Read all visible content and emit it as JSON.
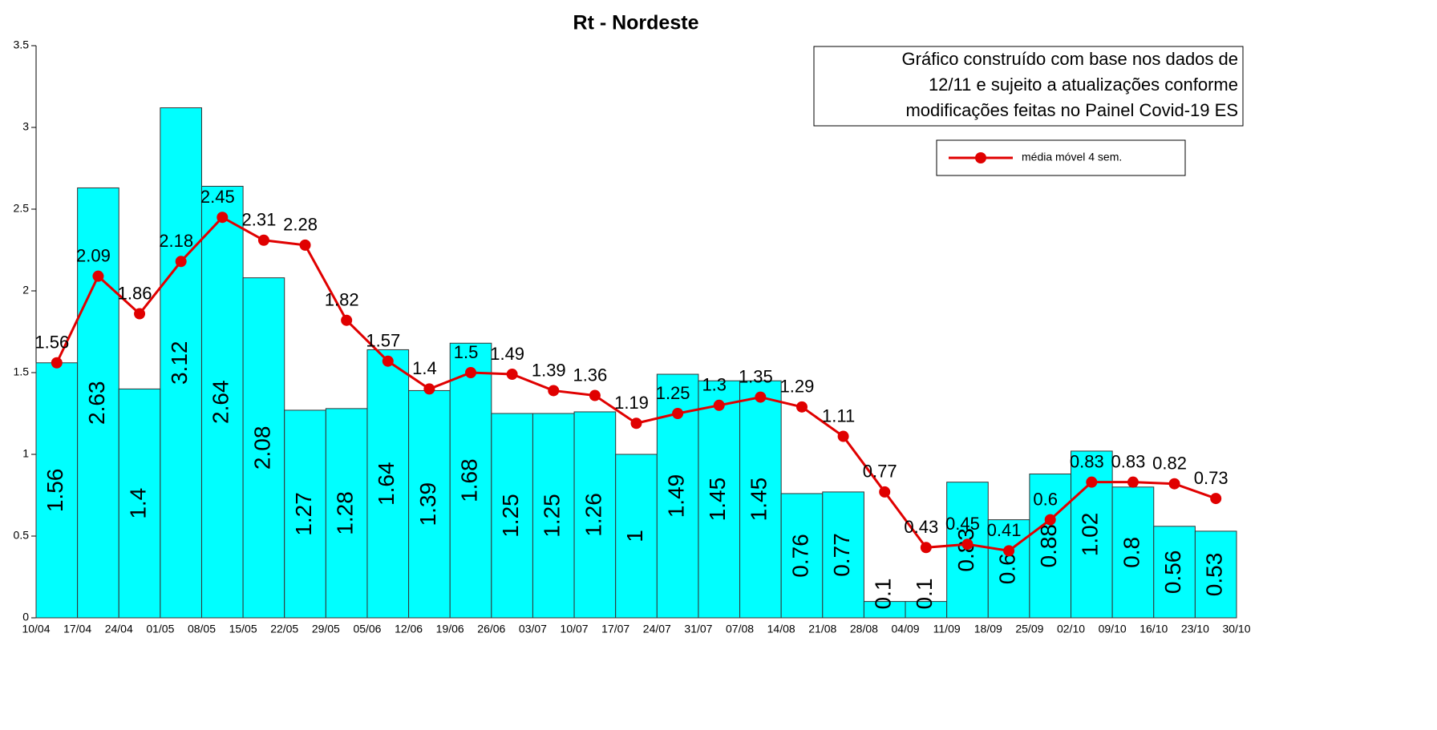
{
  "chart_data": {
    "type": "bar_line",
    "title": "Rt - Nordeste",
    "annotation": [
      "Gráfico construído com base nos dados de",
      "12/11 e sujeito a atualizações conforme",
      "modificações feitas no Painel Covid-19 ES"
    ],
    "x_edges": [
      "10/04",
      "17/04",
      "24/04",
      "01/05",
      "08/05",
      "15/05",
      "22/05",
      "29/05",
      "05/06",
      "12/06",
      "19/06",
      "26/06",
      "03/07",
      "10/07",
      "17/07",
      "24/07",
      "31/07",
      "07/08",
      "14/08",
      "21/08",
      "28/08",
      "04/09",
      "11/09",
      "18/09",
      "25/09",
      "02/10",
      "09/10",
      "16/10",
      "23/10",
      "30/10"
    ],
    "bars": {
      "color": "#00ffff",
      "values": [
        1.56,
        2.63,
        1.4,
        3.12,
        2.64,
        2.08,
        1.27,
        1.28,
        1.64,
        1.39,
        1.68,
        1.25,
        1.25,
        1.26,
        1,
        1.49,
        1.45,
        1.45,
        0.76,
        0.77,
        0.1,
        0.1,
        0.83,
        0.6,
        0.88,
        1.02,
        0.8,
        0.56,
        0.53
      ]
    },
    "series": [
      {
        "name": "média móvel 4 sem.",
        "color": "#e00000",
        "values": [
          1.56,
          2.09,
          1.86,
          2.18,
          2.45,
          2.31,
          2.28,
          1.82,
          1.57,
          1.4,
          1.5,
          1.49,
          1.39,
          1.36,
          1.19,
          1.25,
          1.3,
          1.35,
          1.29,
          1.11,
          0.77,
          0.43,
          0.45,
          0.41,
          0.6,
          0.83,
          0.83,
          0.82,
          0.73
        ]
      }
    ],
    "ylim": [
      0,
      3.5
    ],
    "yticks": [
      0,
      0.5,
      1,
      1.5,
      2,
      2.5,
      3,
      3.5
    ],
    "grid": false,
    "legend": "upper right"
  }
}
